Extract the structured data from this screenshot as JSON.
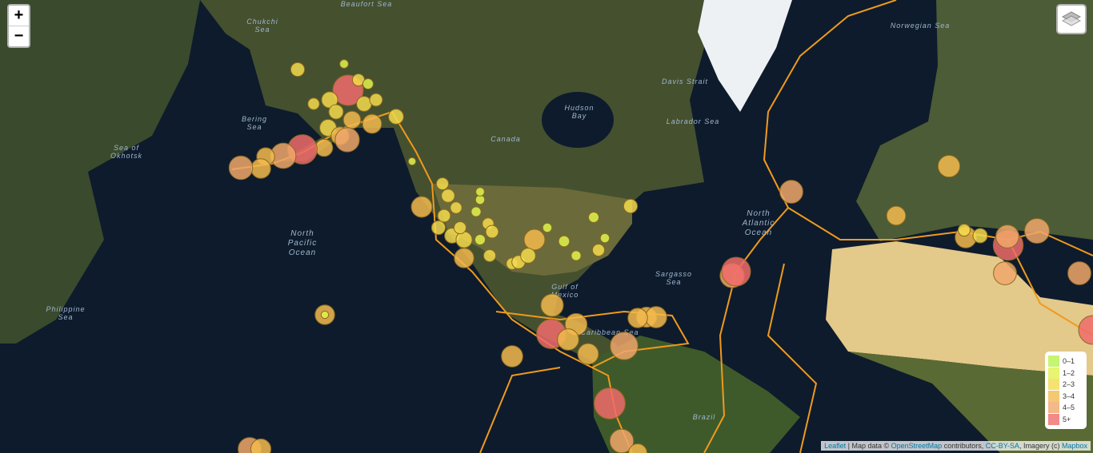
{
  "zoom_control": {
    "zoom_in": "+",
    "zoom_out": "−"
  },
  "legend": {
    "items": [
      {
        "label": "0–1",
        "color": "#b7f34d"
      },
      {
        "label": "1–2",
        "color": "#e1f34d"
      },
      {
        "label": "2–3",
        "color": "#f3db4d"
      },
      {
        "label": "3–4",
        "color": "#f3ba4d"
      },
      {
        "label": "4–5",
        "color": "#f0a76b"
      },
      {
        "label": "5+",
        "color": "#f06b6b"
      }
    ]
  },
  "attribution": {
    "leaflet": "Leaflet",
    "map_data": "| Map data ©",
    "osm": "OpenStreetMap",
    "contributors": "contributors,",
    "license": "CC-BY-SA",
    "imagery": ", Imagery (c)",
    "mapbox": "Mapbox"
  },
  "map_labels": [
    [
      "North",
      "Pacific",
      "Ocean"
    ],
    [
      "North",
      "Atlantic",
      "Ocean"
    ],
    [
      "Sargasso",
      "Sea"
    ],
    [
      "Caribbean Sea"
    ],
    [
      "Gulf of",
      "Mexico"
    ],
    [
      "Hudson",
      "Bay"
    ],
    [
      "Bering",
      "Sea"
    ],
    [
      "Sea of",
      "Okhotsk"
    ],
    [
      "Philippine",
      "Sea"
    ],
    [
      "Chukchi",
      "Sea"
    ],
    [
      "Beaufort Sea"
    ],
    [
      "Labrador Sea"
    ],
    [
      "Davis Strait"
    ],
    [
      "Norwegian Sea"
    ],
    [
      "Canada"
    ],
    [
      "Brazil"
    ]
  ],
  "earthquakes": [
    5.3,
    2.4,
    1.5,
    2.8,
    2.5,
    3.0,
    2.6,
    3.3,
    2.2,
    2.9,
    3.1,
    3.0,
    4.2,
    5.1,
    4.4,
    3.1,
    3.4,
    4.1,
    2.6,
    1.3,
    2.0,
    2.1,
    1.8,
    3.6,
    2.1,
    2.3,
    2.0,
    2.2,
    2.4,
    2.6,
    2.8,
    2.1,
    1.7,
    1.6,
    2.0,
    2.2,
    2.1,
    3.4,
    1.5,
    2.0,
    2.3,
    3.6,
    2.6,
    1.9,
    1.7,
    2.1,
    1.6,
    1.8,
    2.4,
    1.6,
    1.8,
    3.9,
    3.7,
    5.1,
    3.8,
    3.7,
    3.6,
    4.8,
    3.5,
    3.7,
    3.4,
    5.4,
    4.1,
    3.2,
    4.0,
    3.5,
    3.4,
    1.3,
    4.0,
    4.2,
    5.0,
    3.8,
    3.3,
    3.7,
    5.2,
    4.0,
    4.3,
    4.0,
    4.0,
    2.1,
    2.5,
    5.0
  ]
}
